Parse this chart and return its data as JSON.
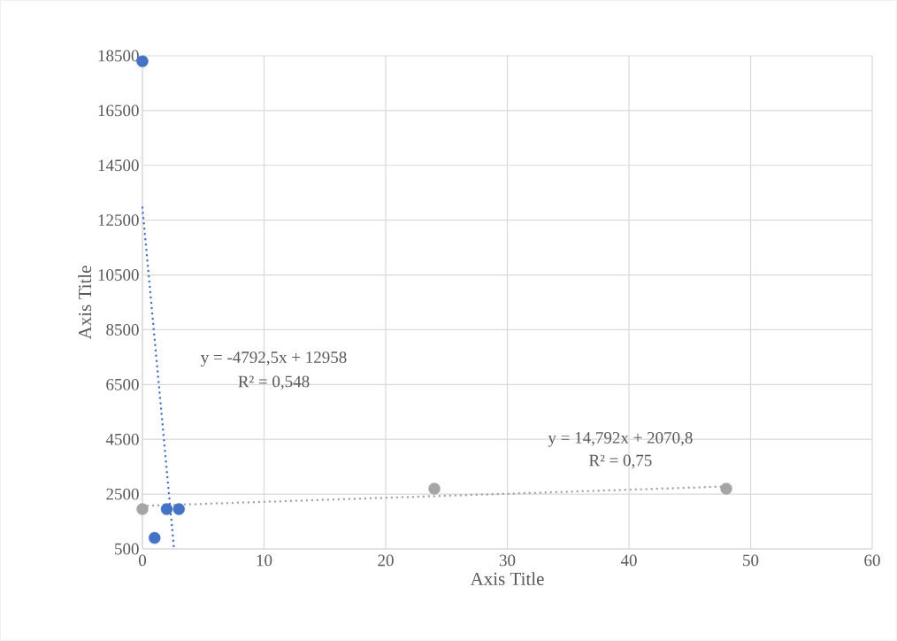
{
  "chart_data": {
    "type": "scatter",
    "xlabel": "Axis Title",
    "ylabel": "Axis Title",
    "xlim": [
      0,
      60
    ],
    "xticks": [
      0,
      10,
      20,
      30,
      40,
      50,
      60
    ],
    "ylim": [
      500,
      18500
    ],
    "yticks": [
      500,
      2500,
      4500,
      6500,
      8500,
      10500,
      12500,
      14500,
      16500,
      18500
    ],
    "grid": true,
    "series": [
      {
        "color": "#4472c4",
        "marker": "circle",
        "x": [
          0,
          1,
          2,
          3
        ],
        "values": [
          18300,
          900,
          1950,
          1950
        ]
      },
      {
        "color": "#a5a5a5",
        "marker": "circle",
        "x": [
          0,
          24,
          48
        ],
        "values": [
          1950,
          2700,
          2700
        ]
      },
      {
        "type": "line",
        "color": "#4472c4",
        "marker": "none",
        "line_style": "dotted",
        "x": [
          0,
          2.6
        ],
        "values": [
          12960,
          500
        ]
      },
      {
        "type": "line",
        "color": "#a5a5a5",
        "marker": "none",
        "line_style": "dotted",
        "x": [
          0,
          48
        ],
        "values": [
          2070,
          2780
        ]
      }
    ],
    "annotations": [
      "y = -4792,5x + 12958",
      "R² = 0,548",
      "y = 14,792x + 2070,8",
      "R² = 0,75"
    ]
  }
}
